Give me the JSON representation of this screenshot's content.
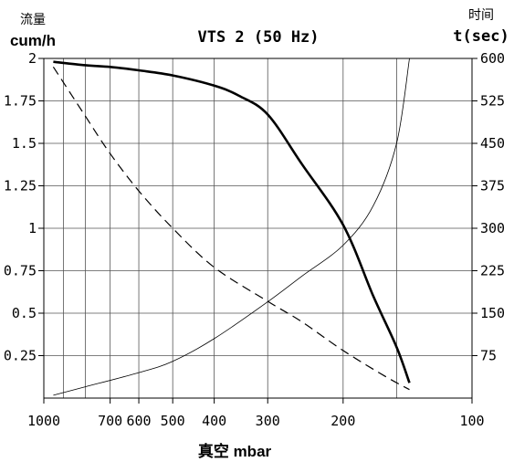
{
  "chart_data": {
    "type": "line",
    "title": "VTS 2 (50 Hz)",
    "xlabel": "真空 mbar",
    "x_scale": "log",
    "x_reversed": true,
    "xlim": [
      1000,
      100
    ],
    "x_ticks": [
      1000,
      700,
      600,
      500,
      400,
      300,
      200,
      100
    ],
    "x_tick_labels": [
      "1000",
      "700",
      "600",
      "500",
      "400",
      "300",
      "200",
      "100"
    ],
    "x_grid": [
      1000,
      900,
      800,
      700,
      600,
      500,
      400,
      300,
      200,
      150,
      100
    ],
    "left_axis": {
      "label_top": "流量",
      "label_unit": "cum/h",
      "ylim": [
        0,
        2
      ],
      "ticks": [
        0.25,
        0.5,
        0.75,
        1,
        1.25,
        1.5,
        1.75,
        2
      ],
      "tick_labels": [
        "0.25",
        "0.5",
        "0.75",
        "1",
        "1.25",
        "1.5",
        "1.75",
        "2"
      ]
    },
    "right_axis": {
      "label_top": "时间",
      "label_unit": "t(sec)",
      "ylim": [
        0,
        600
      ],
      "ticks": [
        75,
        150,
        225,
        300,
        375,
        450,
        525,
        600
      ],
      "tick_labels": [
        "75",
        "150",
        "225",
        "300",
        "375",
        "450",
        "525",
        "600"
      ]
    },
    "grid": true,
    "series": [
      {
        "style": "solid-thick",
        "axis": "left",
        "x": [
          950,
          800,
          700,
          600,
          500,
          400,
          350,
          300,
          250,
          200,
          170,
          150,
          140
        ],
        "y": [
          1.98,
          1.96,
          1.95,
          1.93,
          1.9,
          1.84,
          1.78,
          1.67,
          1.38,
          1.02,
          0.6,
          0.3,
          0.09
        ]
      },
      {
        "style": "dashed",
        "axis": "left",
        "x": [
          950,
          800,
          700,
          600,
          500,
          400,
          300,
          250,
          200,
          160,
          140
        ],
        "y": [
          1.95,
          1.66,
          1.44,
          1.22,
          1.0,
          0.77,
          0.57,
          0.45,
          0.28,
          0.13,
          0.05
        ]
      },
      {
        "style": "solid-thin",
        "axis": "right",
        "x": [
          950,
          800,
          600,
          500,
          400,
          300,
          250,
          200,
          170,
          150,
          140
        ],
        "y": [
          5,
          20,
          45,
          65,
          105,
          170,
          215,
          270,
          340,
          450,
          600
        ]
      }
    ]
  }
}
